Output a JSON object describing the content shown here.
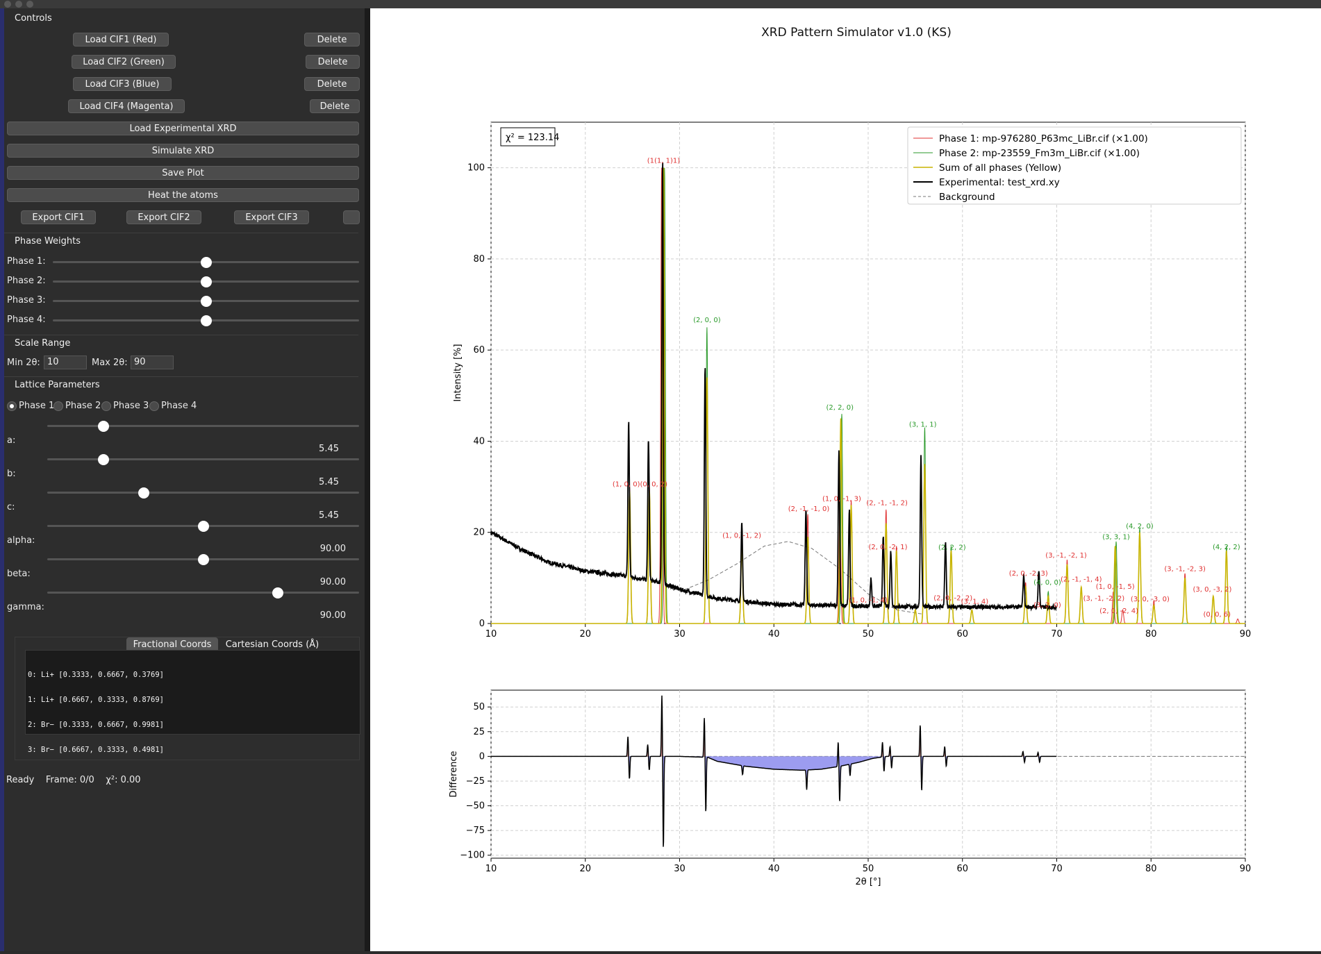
{
  "window": {
    "title": "XRD Pattern Simulator v1.0 (KS)"
  },
  "controls": {
    "header": "Controls",
    "load_cif_buttons": [
      {
        "label": "Load CIF1 (Red)",
        "delete": "Delete"
      },
      {
        "label": "Load CIF2 (Green)",
        "delete": "Delete"
      },
      {
        "label": "Load CIF3 (Blue)",
        "delete": "Delete"
      },
      {
        "label": "Load CIF4 (Magenta)",
        "delete": "Delete"
      }
    ],
    "load_experimental": "Load Experimental XRD",
    "simulate": "Simulate XRD",
    "save_plot": "Save Plot",
    "heat_atoms": "Heat the atoms",
    "export_buttons": [
      "Export CIF1",
      "Export CIF2",
      "Export CIF3"
    ]
  },
  "phase_weights": {
    "header": "Phase Weights",
    "items": [
      {
        "label": "Phase 1:",
        "value": 0.5
      },
      {
        "label": "Phase 2:",
        "value": 0.5
      },
      {
        "label": "Phase 3:",
        "value": 0.5
      },
      {
        "label": "Phase 4:",
        "value": 0.5
      }
    ]
  },
  "scale_range": {
    "header": "Scale Range",
    "min_label": "Min 2θ:",
    "min_value": "10",
    "max_label": "Max 2θ:",
    "max_value": "90"
  },
  "lattice": {
    "header": "Lattice Parameters",
    "phase_options": [
      "Phase 1",
      "Phase 2",
      "Phase 3",
      "Phase 4"
    ],
    "selected_phase": "Phase 1",
    "params": [
      {
        "label": "a:",
        "value": "5.45",
        "slider": 0.18
      },
      {
        "label": "b:",
        "value": "5.45",
        "slider": 0.18
      },
      {
        "label": "c:",
        "value": "5.45",
        "slider": 0.31
      },
      {
        "label": "alpha:",
        "value": "90.00",
        "slider": 0.5
      },
      {
        "label": "beta:",
        "value": "90.00",
        "slider": 0.5
      },
      {
        "label": "gamma:",
        "value": "90.00",
        "slider": 0.74
      }
    ]
  },
  "coords": {
    "tabs": [
      "Fractional Coords",
      "Cartesian Coords (Å)"
    ],
    "active_tab": "Cartesian Coords (Å)",
    "lines": [
      "0: Li+ [0.3333, 0.6667, 0.3769]",
      "1: Li+ [0.6667, 0.3333, 0.8769]",
      "2: Br− [0.3333, 0.6667, 0.9981]",
      "3: Br− [0.6667, 0.3333, 0.4981]"
    ]
  },
  "status": {
    "state": "Ready",
    "frame": "Frame: 0/0",
    "chi": "χ²: 0.00"
  },
  "plot": {
    "title": "XRD Pattern Simulator v1.0 (KS)",
    "chi_box": "χ² = 123.14",
    "colors": {
      "phase1": "#e03030",
      "phase2": "#2a9a2a",
      "sum": "#c8b400",
      "experimental": "#000000",
      "background": "#777777",
      "diff_pos": "#e8a0a0",
      "diff_neg": "#9c9cf0"
    }
  },
  "chart_data": [
    {
      "type": "line",
      "xlabel": "",
      "ylabel": "Intensity [%]",
      "xlim": [
        10,
        90
      ],
      "ylim": [
        0,
        110
      ],
      "xticks": [
        10,
        20,
        30,
        40,
        50,
        60,
        70,
        80,
        90
      ],
      "yticks": [
        0,
        20,
        40,
        60,
        80,
        100
      ],
      "grid": true,
      "legend_position": "top-right",
      "legend": [
        "Phase 1: mp-976280_P63mc_LiBr.cif (×1.00)",
        "Phase 2: mp-23559_Fm3m_LiBr.cif (×1.00)",
        "Sum of all phases (Yellow)",
        "Experimental: test_xrd.xy",
        "Background"
      ],
      "phase1_peaks": [
        [
          24.7,
          30
        ],
        [
          26.8,
          30
        ],
        [
          28.1,
          100
        ],
        [
          36.6,
          18
        ],
        [
          43.6,
          24
        ],
        [
          47.0,
          26
        ],
        [
          48.2,
          27
        ],
        [
          51.9,
          25
        ],
        [
          53.0,
          17
        ],
        [
          66.7,
          9
        ],
        [
          71.1,
          14
        ],
        [
          72.6,
          8
        ],
        [
          76.0,
          7
        ],
        [
          77.0,
          3
        ],
        [
          80.3,
          5
        ],
        [
          83.6,
          11
        ],
        [
          86.6,
          6
        ],
        [
          89.2,
          1
        ]
      ],
      "phase2_peaks": [
        [
          28.4,
          100
        ],
        [
          32.9,
          65
        ],
        [
          47.2,
          46
        ],
        [
          56.0,
          43
        ],
        [
          58.8,
          17
        ],
        [
          69.1,
          7
        ],
        [
          76.3,
          18
        ],
        [
          78.8,
          21
        ],
        [
          88.0,
          17
        ]
      ],
      "sum_peaks": [
        [
          24.7,
          29
        ],
        [
          26.8,
          29
        ],
        [
          28.3,
          100
        ],
        [
          32.9,
          54
        ],
        [
          36.6,
          17
        ],
        [
          43.6,
          19
        ],
        [
          47.1,
          45
        ],
        [
          48.2,
          26
        ],
        [
          51.9,
          22
        ],
        [
          53.0,
          16
        ],
        [
          55.0,
          3
        ],
        [
          56.0,
          35
        ],
        [
          58.8,
          16
        ],
        [
          61.0,
          3
        ],
        [
          66.7,
          8
        ],
        [
          69.1,
          6
        ],
        [
          71.1,
          13
        ],
        [
          72.6,
          8
        ],
        [
          76.2,
          17
        ],
        [
          78.8,
          20
        ],
        [
          80.3,
          4
        ],
        [
          83.6,
          10
        ],
        [
          86.6,
          6
        ],
        [
          88.0,
          16
        ]
      ],
      "experimental": {
        "x_range": [
          10,
          70
        ],
        "baseline": [
          [
            10,
            20
          ],
          [
            13,
            16.5
          ],
          [
            16,
            13.5
          ],
          [
            20,
            11.5
          ],
          [
            24,
            10.5
          ],
          [
            28,
            9
          ],
          [
            30,
            7.5
          ],
          [
            34,
            5.5
          ],
          [
            40,
            4.2
          ],
          [
            50,
            3.8
          ],
          [
            60,
            3.6
          ],
          [
            70,
            3.6
          ]
        ],
        "peaks": [
          [
            24.6,
            34
          ],
          [
            26.7,
            31
          ],
          [
            28.2,
            93
          ],
          [
            32.7,
            50
          ],
          [
            36.6,
            17
          ],
          [
            43.4,
            21
          ],
          [
            46.9,
            34
          ],
          [
            48.0,
            21
          ],
          [
            50.3,
            6
          ],
          [
            51.6,
            15
          ],
          [
            52.4,
            12
          ],
          [
            55.6,
            33
          ],
          [
            58.2,
            14
          ],
          [
            66.5,
            7
          ],
          [
            68.1,
            8
          ]
        ]
      },
      "background_curve": [
        [
          30,
          7
        ],
        [
          33,
          9.5
        ],
        [
          36,
          13
        ],
        [
          39,
          17
        ],
        [
          41.5,
          18
        ],
        [
          44,
          16.5
        ],
        [
          47,
          12
        ],
        [
          50,
          6.5
        ],
        [
          53,
          3
        ],
        [
          56,
          2
        ]
      ],
      "peak_labels": [
        {
          "text": "(1(1, 1)1)",
          "x": 28.3,
          "y": 100.5,
          "phase": 1
        },
        {
          "text": "(2, 0, 0)",
          "x": 32.9,
          "y": 65.5,
          "phase": 2
        },
        {
          "text": "(2, 2, 0)",
          "x": 47.0,
          "y": 46.3,
          "phase": 2
        },
        {
          "text": "(3, 1, 1)",
          "x": 55.8,
          "y": 42.6,
          "phase": 2
        },
        {
          "text": "(1, 0, 0)(0, 0, 2)",
          "x": 25.8,
          "y": 29.5,
          "phase": 1
        },
        {
          "text": "(2, -1, -1, 0)",
          "x": 43.7,
          "y": 24.1,
          "phase": 1
        },
        {
          "text": "(1, 0, -1, 3)",
          "x": 47.2,
          "y": 26.3,
          "phase": 1
        },
        {
          "text": "(2, -1, -1, 2)",
          "x": 52.0,
          "y": 25.4,
          "phase": 1
        },
        {
          "text": "(1, 0, -1, 2)",
          "x": 36.6,
          "y": 18.2,
          "phase": 1
        },
        {
          "text": "(2, 0, -2, 1)",
          "x": 52.1,
          "y": 15.7,
          "phase": 1
        },
        {
          "text": "(2, 2, 2)",
          "x": 58.9,
          "y": 15.6,
          "phase": 2
        },
        {
          "text": "(4, 2, 0)",
          "x": 78.8,
          "y": 20.3,
          "phase": 2
        },
        {
          "text": "(3, 3, 1)",
          "x": 76.3,
          "y": 17.9,
          "phase": 2
        },
        {
          "text": "(4, 2, 2)",
          "x": 88.0,
          "y": 15.7,
          "phase": 2
        },
        {
          "text": "(3, -1, -2, 1)",
          "x": 71.0,
          "y": 13.9,
          "phase": 1
        },
        {
          "text": "(2, 0, -2, 3)",
          "x": 67.0,
          "y": 9.9,
          "phase": 1
        },
        {
          "text": "(3, -1, -2, 3)",
          "x": 83.6,
          "y": 10.9,
          "phase": 1
        },
        {
          "text": "(2, -1, -1, 4)",
          "x": 72.6,
          "y": 8.6,
          "phase": 1
        },
        {
          "text": "(4, 0, 0)",
          "x": 69.0,
          "y": 7.9,
          "phase": 2
        },
        {
          "text": "(1, 0, -1, 5)",
          "x": 76.2,
          "y": 7.0,
          "phase": 1
        },
        {
          "text": "(3, 0, -3, 2)",
          "x": 86.5,
          "y": 6.4,
          "phase": 1
        },
        {
          "text": "(3, -1, -2, 2)",
          "x": 75.0,
          "y": 4.4,
          "phase": 1
        },
        {
          "text": "(3, 0, -3, 0)",
          "x": 79.9,
          "y": 4.3,
          "phase": 1
        },
        {
          "text": "(2, 0, -2, 4)",
          "x": 76.6,
          "y": 1.7,
          "phase": 1
        },
        {
          "text": "(0, 0, 6)",
          "x": 87.0,
          "y": 0.9,
          "phase": 1
        },
        {
          "text": "(2, 0, -2, 2)",
          "x": 59.0,
          "y": 4.5,
          "phase": 1
        },
        {
          "text": "(3, 1, 4)",
          "x": 61.3,
          "y": 3.7,
          "phase": 1
        },
        {
          "text": "(3, 2, 0)",
          "x": 69.0,
          "y": 3.0,
          "phase": 1
        },
        {
          "text": "(1, 0, -1, 4)",
          "x": 50.0,
          "y": 4.0,
          "phase": 1
        }
      ]
    },
    {
      "type": "line",
      "xlabel": "2θ [°]",
      "ylabel": "Difference",
      "xlim": [
        10,
        90
      ],
      "ylim": [
        -103,
        67
      ],
      "xticks": [
        10,
        20,
        30,
        40,
        50,
        60,
        70,
        80,
        90
      ],
      "yticks": [
        -100,
        -75,
        -50,
        -25,
        0,
        25,
        50
      ],
      "grid": true,
      "difference": {
        "x_range": [
          10,
          70
        ],
        "baseline": [
          [
            10,
            0
          ],
          [
            30,
            0
          ],
          [
            33,
            -1
          ],
          [
            34,
            -5
          ],
          [
            37,
            -10
          ],
          [
            40,
            -13
          ],
          [
            43,
            -14
          ],
          [
            45,
            -13
          ],
          [
            47,
            -10
          ],
          [
            49,
            -6
          ],
          [
            50.5,
            -2
          ],
          [
            52,
            0
          ],
          [
            70,
            0
          ]
        ],
        "features": [
          [
            24.6,
            20,
            -23
          ],
          [
            26.7,
            12,
            -14
          ],
          [
            28.2,
            62,
            -94
          ],
          [
            32.7,
            40,
            -56
          ],
          [
            36.6,
            0,
            -9
          ],
          [
            43.4,
            0,
            -20
          ],
          [
            46.9,
            25,
            -36
          ],
          [
            48.0,
            0,
            -12
          ],
          [
            51.6,
            15,
            -15
          ],
          [
            52.4,
            10,
            -12
          ],
          [
            55.6,
            32,
            -35
          ],
          [
            58.2,
            10,
            -10
          ],
          [
            66.5,
            5,
            -6
          ],
          [
            68.1,
            4,
            -6
          ]
        ]
      }
    }
  ]
}
